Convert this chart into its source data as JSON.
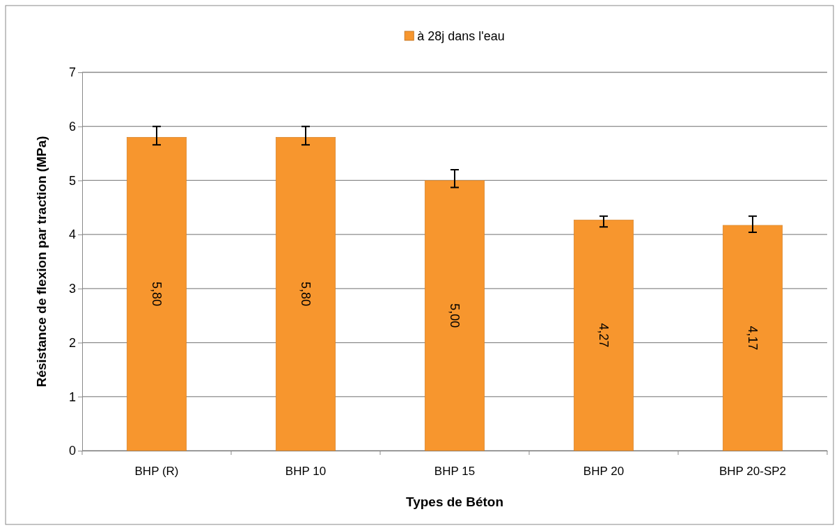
{
  "chart_data": {
    "type": "bar",
    "xlabel": "Types de Béton",
    "ylabel": "Résistance de flexion par traction (MPa)",
    "categories": [
      "BHP (R)",
      "BHP 10",
      "BHP 15",
      "BHP 20",
      "BHP 20-SP2"
    ],
    "series": [
      {
        "name": "à 28j dans l'eau",
        "color": "#f7962e",
        "values": [
          5.8,
          5.8,
          5.0,
          4.27,
          4.17
        ],
        "errors": [
          [
            5.66,
            6.0
          ],
          [
            5.66,
            6.0
          ],
          [
            4.87,
            5.2
          ],
          [
            4.14,
            4.34
          ],
          [
            4.04,
            4.34
          ]
        ]
      }
    ],
    "ylim": [
      0,
      7
    ],
    "yticks": [
      0,
      1,
      2,
      3,
      4,
      5,
      6,
      7
    ],
    "grid": "y",
    "legend": "top",
    "value_labels": [
      "5,80",
      "5,80",
      "5,00",
      "4,27",
      "4,17"
    ]
  }
}
